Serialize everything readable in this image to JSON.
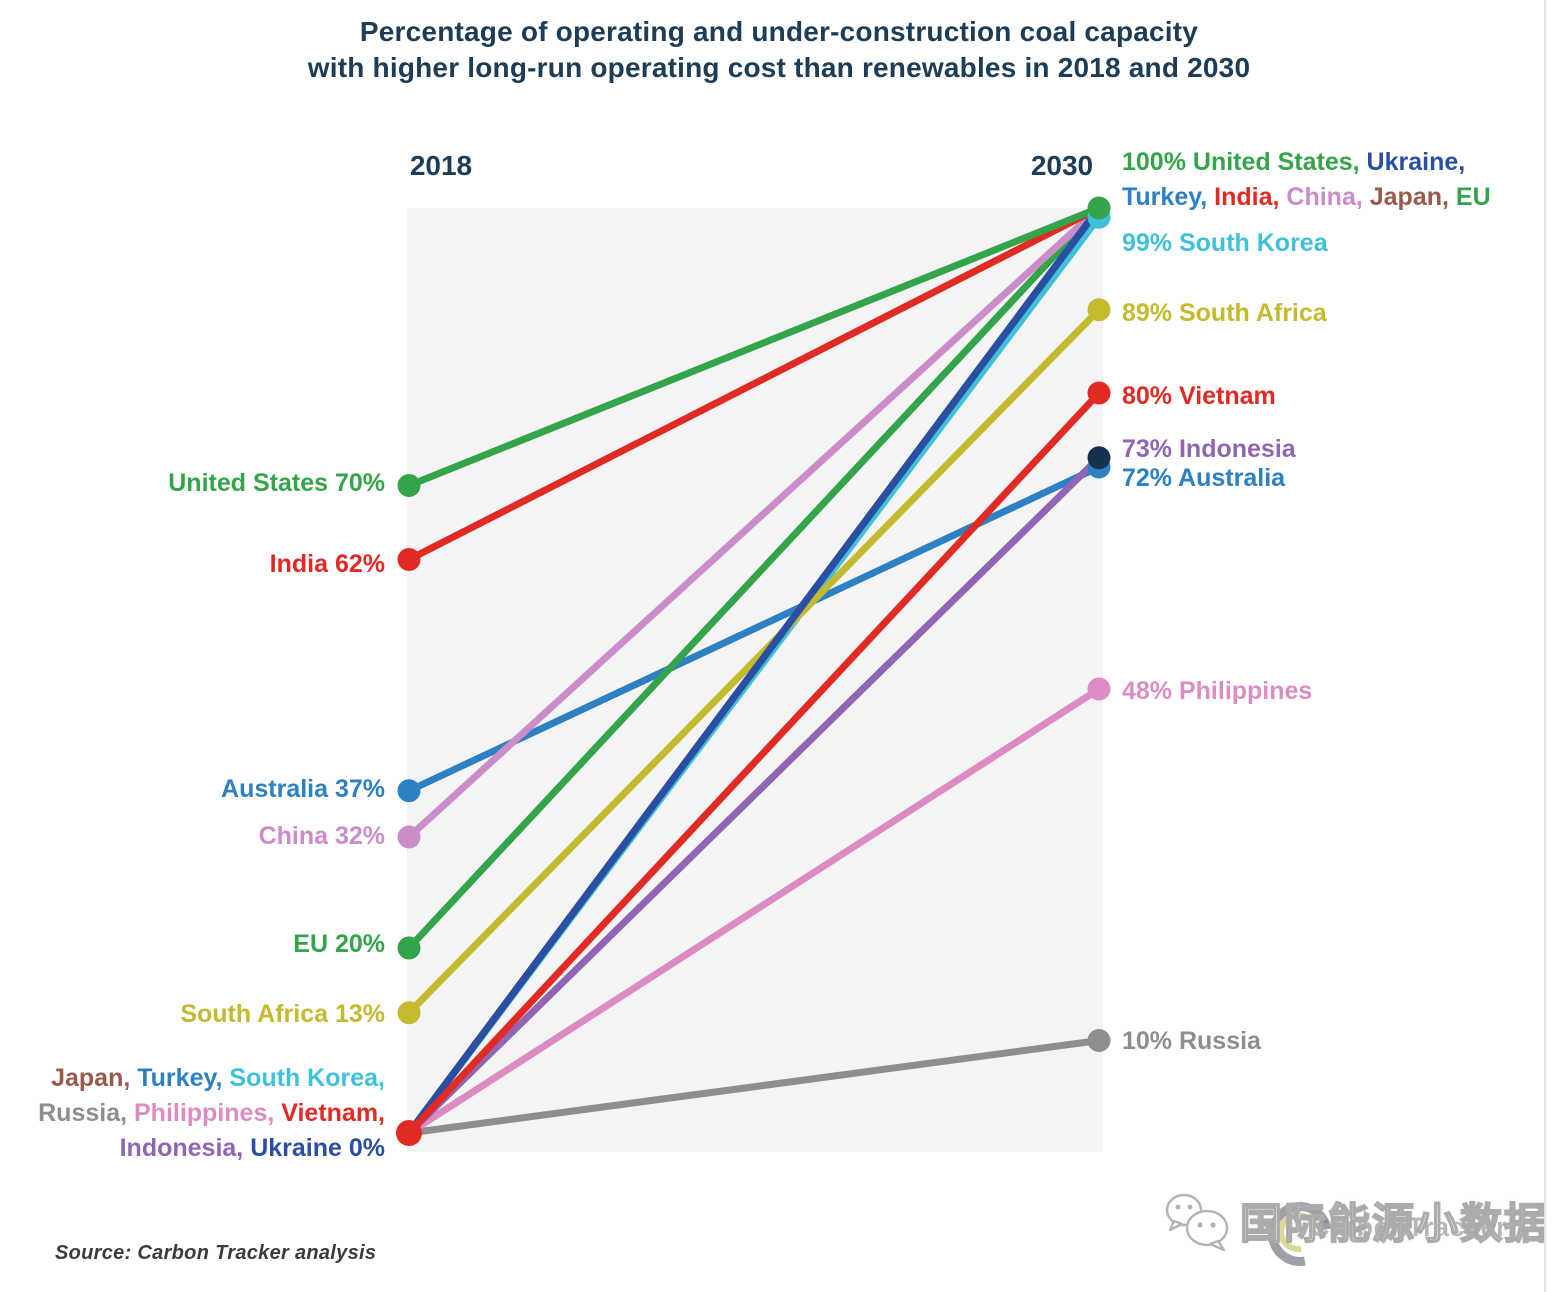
{
  "title": {
    "line1": "Percentage of operating and under-construction coal capacity",
    "line2": "with higher long-run operating cost than renewables in 2018 and 2030"
  },
  "axis": {
    "left_year": "2018",
    "right_year": "2030"
  },
  "source": "Source: Carbon Tracker analysis",
  "watermark": {
    "icon": "wechat-icon",
    "text": "国际能源小数据",
    "ghost_text": "CarbonTracker"
  },
  "palette": {
    "navy_text": "#1d3c55",
    "green": "#34a44a",
    "red": "#e22a25",
    "blue": "#2d80c2",
    "dark_blue": "#2a4fa2",
    "cyan": "#3ec1d9",
    "orchid": "#cb8dc9",
    "brown": "#995a4e",
    "olive": "#c3ba2d",
    "purple": "#9066b4",
    "pink": "#dd8cc3",
    "gray": "#8e8e8e",
    "dark_navy": "#17324e",
    "plot_bg": "#f4f4f4"
  },
  "chart_data": {
    "type": "line",
    "subtype": "slopegraph",
    "x_categories": [
      "2018",
      "2030"
    ],
    "ylim": [
      0,
      100
    ],
    "grid": false,
    "legend_position": "inline-labels",
    "series": [
      {
        "name": "United States",
        "values": [
          70,
          100
        ],
        "color": "green"
      },
      {
        "name": "India",
        "values": [
          62,
          100
        ],
        "color": "red"
      },
      {
        "name": "Australia",
        "values": [
          37,
          72
        ],
        "color": "blue"
      },
      {
        "name": "China",
        "values": [
          32,
          100
        ],
        "color": "orchid"
      },
      {
        "name": "EU",
        "values": [
          20,
          100
        ],
        "color": "green"
      },
      {
        "name": "South Africa",
        "values": [
          13,
          89
        ],
        "color": "olive"
      },
      {
        "name": "Japan",
        "values": [
          0,
          100
        ],
        "color": "brown"
      },
      {
        "name": "Turkey",
        "values": [
          0,
          100
        ],
        "color": "blue"
      },
      {
        "name": "South Korea",
        "values": [
          0,
          99
        ],
        "color": "cyan"
      },
      {
        "name": "Russia",
        "values": [
          0,
          10
        ],
        "color": "gray"
      },
      {
        "name": "Philippines",
        "values": [
          0,
          48
        ],
        "color": "pink"
      },
      {
        "name": "Vietnam",
        "values": [
          0,
          80
        ],
        "color": "red"
      },
      {
        "name": "Indonesia",
        "values": [
          0,
          73
        ],
        "color": "purple"
      },
      {
        "name": "Ukraine",
        "values": [
          0,
          100
        ],
        "color": "dark_blue"
      }
    ],
    "draw_order": [
      "Russia",
      "South Korea",
      "Philippines",
      "Australia",
      "Indonesia",
      "South Africa",
      "EU",
      "China",
      "Japan",
      "Turkey",
      "Ukraine",
      "Vietnam",
      "India",
      "United States"
    ],
    "dots": {
      "left": [
        {
          "value": 70,
          "color": "green"
        },
        {
          "value": 62,
          "color": "red"
        },
        {
          "value": 37,
          "color": "blue"
        },
        {
          "value": 32,
          "color": "orchid"
        },
        {
          "value": 20,
          "color": "green"
        },
        {
          "value": 13,
          "color": "olive"
        },
        {
          "value": 0,
          "color": "red",
          "r": 13
        }
      ],
      "right": [
        {
          "value": 99,
          "color": "cyan"
        },
        {
          "value": 100,
          "color": "green"
        },
        {
          "value": 89,
          "color": "olive"
        },
        {
          "value": 80,
          "color": "red"
        },
        {
          "value": 72,
          "color": "blue"
        },
        {
          "value": 73,
          "color": "dark_navy"
        },
        {
          "value": 48,
          "color": "pink"
        },
        {
          "value": 10,
          "color": "gray"
        }
      ]
    },
    "left_labels": [
      {
        "name": "united-states",
        "value": 70,
        "dy": -3,
        "segments": [
          {
            "text": "United States 70%",
            "color": "green"
          }
        ]
      },
      {
        "name": "india",
        "value": 62,
        "dy": 4,
        "segments": [
          {
            "text": "India 62%",
            "color": "red"
          }
        ]
      },
      {
        "name": "australia",
        "value": 37,
        "dy": -2,
        "segments": [
          {
            "text": "Australia 37%",
            "color": "blue"
          }
        ]
      },
      {
        "name": "china",
        "value": 32,
        "dy": -1,
        "segments": [
          {
            "text": "China 32%",
            "color": "orchid"
          }
        ]
      },
      {
        "name": "eu",
        "value": 20,
        "dy": -4,
        "segments": [
          {
            "text": "EU 20%",
            "color": "green"
          }
        ]
      },
      {
        "name": "south-africa",
        "value": 13,
        "dy": 1,
        "segments": [
          {
            "text": "South Africa 13%",
            "color": "olive"
          }
        ]
      },
      {
        "name": "zero-group",
        "value": 0,
        "dy": -20,
        "lines": [
          [
            {
              "text": "Japan, ",
              "color": "brown"
            },
            {
              "text": "Turkey, ",
              "color": "blue"
            },
            {
              "text": "South Korea,",
              "color": "cyan"
            }
          ],
          [
            {
              "text": "Russia, ",
              "color": "gray"
            },
            {
              "text": "Philippines, ",
              "color": "pink"
            },
            {
              "text": "Vietnam,",
              "color": "red"
            }
          ],
          [
            {
              "text": "Indonesia, ",
              "color": "purple"
            },
            {
              "text": "Ukraine 0%",
              "color": "dark_blue"
            }
          ]
        ]
      }
    ],
    "right_labels": [
      {
        "name": "hundred-group",
        "value": 100,
        "dy": -28,
        "lines": [
          [
            {
              "text": "100% United States, ",
              "color": "green"
            },
            {
              "text": "Ukraine,",
              "color": "dark_blue"
            }
          ],
          [
            {
              "text": "Turkey, ",
              "color": "blue"
            },
            {
              "text": "India, ",
              "color": "red"
            },
            {
              "text": "China, ",
              "color": "orchid"
            },
            {
              "text": "Japan, ",
              "color": "brown"
            },
            {
              "text": "EU",
              "color": "green"
            }
          ]
        ]
      },
      {
        "name": "south-korea",
        "value": 99,
        "dy": 26,
        "segments": [
          {
            "text": "99% South Korea",
            "color": "cyan"
          }
        ]
      },
      {
        "name": "south-africa",
        "value": 89,
        "dy": 3,
        "segments": [
          {
            "text": "89% South Africa",
            "color": "olive"
          }
        ]
      },
      {
        "name": "vietnam",
        "value": 80,
        "dy": 3,
        "segments": [
          {
            "text": "80% Vietnam",
            "color": "red"
          }
        ]
      },
      {
        "name": "indonesia",
        "value": 73,
        "dy": -9,
        "segments": [
          {
            "text": "73% Indonesia",
            "color": "purple"
          }
        ]
      },
      {
        "name": "australia",
        "value": 72,
        "dy": 11,
        "segments": [
          {
            "text": "72% Australia",
            "color": "blue"
          }
        ]
      },
      {
        "name": "philippines",
        "value": 48,
        "dy": 2,
        "segments": [
          {
            "text": "48% Philippines",
            "color": "pink"
          }
        ]
      },
      {
        "name": "russia",
        "value": 10,
        "dy": 0,
        "segments": [
          {
            "text": "10% Russia",
            "color": "gray"
          }
        ]
      }
    ]
  }
}
